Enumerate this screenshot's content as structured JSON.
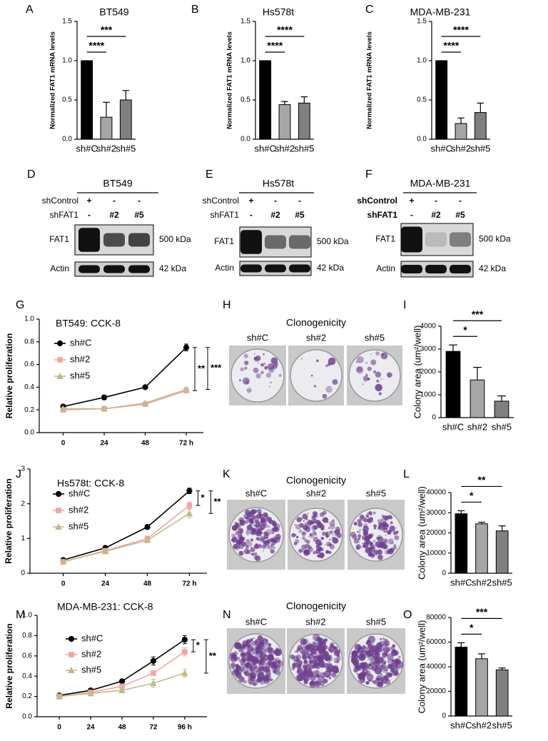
{
  "chart_data": [
    {
      "panel": "A",
      "type": "bar",
      "title": "BT549",
      "ylabel": "Normalized FAT1 mRNA levels",
      "categories": [
        "sh#C",
        "sh#2",
        "sh#5"
      ],
      "values": [
        1.0,
        0.28,
        0.5
      ],
      "errors": [
        0,
        0.19,
        0.12
      ],
      "colors": [
        "#000000",
        "#a6a6a6",
        "#808080"
      ],
      "ylim": [
        0,
        1.5
      ],
      "yticks": [
        {
          "value": 0,
          "label": "0.0"
        },
        0.5,
        {
          "value": 1,
          "label": "1.0"
        },
        1.5
      ],
      "annotations": [
        "****",
        "***"
      ]
    },
    {
      "panel": "B",
      "type": "bar",
      "title": "Hs578t",
      "ylabel": "Normalized FAT1 mRNA levels",
      "categories": [
        "sh#C",
        "sh#2",
        "sh#5"
      ],
      "values": [
        1.0,
        0.44,
        0.46
      ],
      "errors": [
        0,
        0.04,
        0.08
      ],
      "colors": [
        "#000000",
        "#a6a6a6",
        "#808080"
      ],
      "ylim": [
        0,
        1.5
      ],
      "yticks": [
        {
          "value": 0,
          "label": "0.0"
        },
        0.5,
        {
          "value": 1,
          "label": "1.0"
        },
        1.5
      ],
      "annotations": [
        "****",
        "****"
      ]
    },
    {
      "panel": "C",
      "type": "bar",
      "title": "MDA-MB-231",
      "ylabel": "Normalized FAT1 mRNA levels",
      "categories": [
        "sh#C",
        "sh#2",
        "sh#5"
      ],
      "values": [
        1.0,
        0.2,
        0.34
      ],
      "errors": [
        0,
        0.07,
        0.12
      ],
      "colors": [
        "#000000",
        "#a6a6a6",
        "#808080"
      ],
      "ylim": [
        0,
        1.5
      ],
      "yticks": [
        {
          "value": 0,
          "label": "0.0"
        },
        0.5,
        {
          "value": 1,
          "label": "1.0"
        },
        1.5
      ],
      "annotations": [
        "****",
        "****"
      ]
    },
    {
      "panel": "G",
      "type": "line",
      "title": "BT549: CCK-8",
      "ylabel": "Relative proliferation",
      "x": [
        0,
        24,
        48,
        72
      ],
      "xlim": [
        -14,
        82
      ],
      "xticks": [
        0,
        24,
        48,
        {
          "value": 72,
          "label": "72 h"
        }
      ],
      "ylim": [
        0,
        1
      ],
      "yticks": [
        {
          "value": 0,
          "label": "0.0"
        },
        0.2,
        0.4,
        0.6,
        0.8,
        {
          "value": 1,
          "label": "1.0"
        }
      ],
      "series": [
        {
          "name": "sh#C",
          "color": "#000000",
          "values": [
            0.23,
            0.31,
            0.4,
            0.75
          ],
          "errors": [
            0.01,
            0.02,
            0.01,
            0.03
          ]
        },
        {
          "name": "sh#2",
          "color": "#f4a3a3",
          "values": [
            0.2,
            0.21,
            0.25,
            0.37
          ],
          "errors": [
            0.01,
            0.01,
            0.01,
            0.02
          ]
        },
        {
          "name": "sh#5",
          "color": "#c5b88a",
          "values": [
            0.21,
            0.21,
            0.26,
            0.38
          ],
          "errors": [
            0.01,
            0.01,
            0.01,
            0.02
          ]
        }
      ],
      "annotations": [
        "**",
        "***"
      ]
    },
    {
      "panel": "I",
      "type": "bar",
      "ylabel": "Colony area (um²/well)",
      "categories": [
        "sh#C",
        "sh#2",
        "sh#5"
      ],
      "values": [
        2900,
        1650,
        720
      ],
      "errors": [
        280,
        550,
        230
      ],
      "colors": [
        "#000000",
        "#a6a6a6",
        "#808080"
      ],
      "ylim": [
        0,
        4000
      ],
      "yticks": [
        0,
        1000,
        2000,
        3000,
        4000
      ],
      "annotations": [
        "*",
        "***"
      ]
    },
    {
      "panel": "J",
      "type": "line",
      "title": "Hs578t: CCK-8",
      "ylabel": "Relative proliferation",
      "x": [
        0,
        24,
        48,
        72
      ],
      "xlim": [
        -19,
        82
      ],
      "xticks": [
        0,
        24,
        48,
        {
          "value": 72,
          "label": "72 h"
        }
      ],
      "ylim": [
        0,
        3
      ],
      "yticks": [
        0,
        1,
        2,
        3
      ],
      "series": [
        {
          "name": "sh#C",
          "color": "#000000",
          "values": [
            0.38,
            0.73,
            1.33,
            2.37
          ],
          "errors": [
            0.02,
            0.03,
            0.06,
            0.08
          ]
        },
        {
          "name": "sh#2",
          "color": "#f4a3a3",
          "values": [
            0.33,
            0.65,
            1.0,
            1.95
          ],
          "errors": [
            0.02,
            0.03,
            0.06,
            0.1
          ]
        },
        {
          "name": "sh#5",
          "color": "#c5b88a",
          "values": [
            0.33,
            0.63,
            0.95,
            1.72
          ],
          "errors": [
            0.02,
            0.03,
            0.06,
            0.12
          ]
        }
      ],
      "annotations": [
        "*",
        "**"
      ]
    },
    {
      "panel": "L",
      "type": "bar",
      "ylabel": "Colony area (um²/well)",
      "categories": [
        "sh#C",
        "sh#2",
        "sh#5"
      ],
      "values": [
        29500,
        24500,
        21000
      ],
      "errors": [
        1500,
        800,
        2500
      ],
      "colors": [
        "#000000",
        "#a6a6a6",
        "#808080"
      ],
      "ylim": [
        0,
        40000
      ],
      "yticks": [
        0,
        10000,
        20000,
        30000,
        40000
      ],
      "annotations": [
        "*",
        "**"
      ]
    },
    {
      "panel": "M",
      "type": "line",
      "title": "MDA-MB-231: CCK-8",
      "ylabel": "Relative proliferation",
      "x": [
        0,
        24,
        48,
        72,
        96
      ],
      "xlim": [
        -17,
        113
      ],
      "xticks": [
        0,
        24,
        48,
        72,
        {
          "value": 96,
          "label": "96 h"
        }
      ],
      "ylim": [
        0,
        1
      ],
      "yticks": [
        {
          "value": 0,
          "label": "0.0"
        },
        0.2,
        0.4,
        0.6,
        0.8,
        {
          "value": 1,
          "label": "1.0"
        }
      ],
      "series": [
        {
          "name": "sh#C",
          "color": "#000000",
          "values": [
            0.21,
            0.26,
            0.35,
            0.55,
            0.76
          ],
          "errors": [
            0.01,
            0.01,
            0.01,
            0.04,
            0.04
          ]
        },
        {
          "name": "sh#2",
          "color": "#f4a3a3",
          "values": [
            0.2,
            0.24,
            0.3,
            0.43,
            0.64
          ],
          "errors": [
            0.01,
            0.01,
            0.01,
            0.02,
            0.04
          ]
        },
        {
          "name": "sh#5",
          "color": "#c5b88a",
          "values": [
            0.2,
            0.23,
            0.26,
            0.33,
            0.43
          ],
          "errors": [
            0.01,
            0.01,
            0.01,
            0.04,
            0.04
          ]
        }
      ],
      "annotations": [
        "*",
        "**"
      ]
    },
    {
      "panel": "O",
      "type": "bar",
      "ylabel": "Colony area (um²/well)",
      "categories": [
        "sh#C",
        "sh#2",
        "sh#5"
      ],
      "values": [
        56000,
        46500,
        37500
      ],
      "errors": [
        3500,
        4000,
        1500
      ],
      "colors": [
        "#000000",
        "#a6a6a6",
        "#808080"
      ],
      "ylim": [
        0,
        80000
      ],
      "yticks": [
        0,
        20000,
        40000,
        60000,
        80000
      ],
      "annotations": [
        "*",
        "***"
      ]
    }
  ],
  "blots": [
    {
      "panel": "D",
      "title": "BT549",
      "rows": [
        {
          "label": "shControl",
          "lanes": [
            "+",
            "-",
            "-"
          ]
        },
        {
          "label": "shFAT1",
          "lanes": [
            "-",
            "#2",
            "#5"
          ]
        }
      ],
      "bands": [
        {
          "label": "FAT1",
          "size": "500 kDa"
        },
        {
          "label": "Actin",
          "size": "42 kDa"
        }
      ]
    },
    {
      "panel": "E",
      "title": "Hs578t",
      "rows": [
        {
          "label": "shControl",
          "lanes": [
            "+",
            "-",
            "-"
          ]
        },
        {
          "label": "shFAT1",
          "lanes": [
            "-",
            "#2",
            "#5"
          ]
        }
      ],
      "bands": [
        {
          "label": "FAT1",
          "size": "500 kDa"
        },
        {
          "label": "Actin",
          "size": "42 kDa"
        }
      ]
    },
    {
      "panel": "F",
      "title": "MDA-MB-231",
      "rows": [
        {
          "label": "shControl",
          "lanes": [
            "+",
            "-",
            "-"
          ]
        },
        {
          "label": "shFAT1",
          "lanes": [
            "-",
            "#2",
            "#5"
          ]
        }
      ],
      "bands": [
        {
          "label": "FAT1",
          "size": "500 kDa"
        },
        {
          "label": "Actin",
          "size": "42 kDa"
        }
      ]
    }
  ],
  "colony_images": [
    {
      "panel": "H",
      "title": "Clonogenicity",
      "labels": [
        "sh#C",
        "sh#2",
        "sh#5"
      ]
    },
    {
      "panel": "K",
      "title": "Clonogenicity",
      "labels": [
        "sh#C",
        "sh#2",
        "sh#5"
      ]
    },
    {
      "panel": "N",
      "title": "Clonogenicity",
      "labels": [
        "sh#C",
        "sh#2",
        "sh#5"
      ]
    }
  ]
}
